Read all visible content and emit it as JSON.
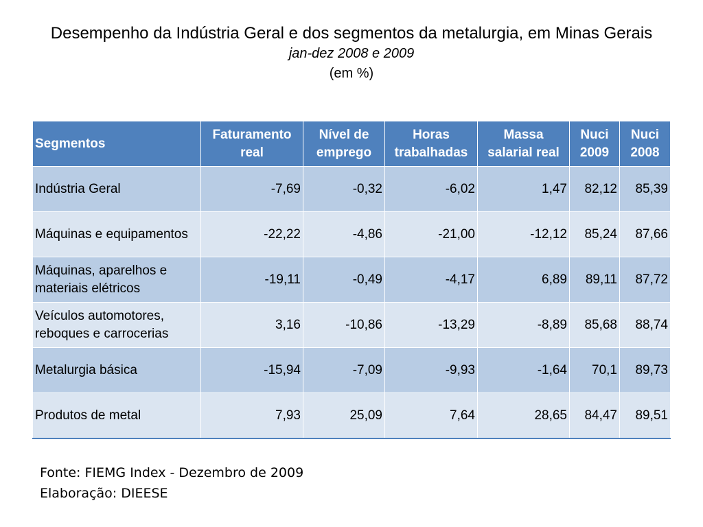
{
  "title": "Desempenho da Indústria Geral e dos segmentos da metalurgia, em Minas Gerais",
  "period": "jan-dez 2008 e 2009",
  "unit": "(em %)",
  "table": {
    "headers": [
      "Segmentos",
      "Faturamento real",
      "Nível de emprego",
      "Horas trabalhadas",
      "Massa salarial real",
      "Nuci 2009",
      "Nuci 2008"
    ],
    "rows": [
      {
        "segment": "Indústria Geral",
        "values": [
          "-7,69",
          "-0,32",
          "-6,02",
          "1,47",
          "82,12",
          "85,39"
        ]
      },
      {
        "segment": "Máquinas e equipamentos",
        "values": [
          "-22,22",
          "-4,86",
          "-21,00",
          "-12,12",
          "85,24",
          "87,66"
        ]
      },
      {
        "segment": "Máquinas, aparelhos e materiais elétricos",
        "values": [
          "-19,11",
          "-0,49",
          "-4,17",
          "6,89",
          "89,11",
          "87,72"
        ]
      },
      {
        "segment": "Veículos automotores, reboques e carrocerias",
        "values": [
          "3,16",
          "-10,86",
          "-13,29",
          "-8,89",
          "85,68",
          "88,74"
        ]
      },
      {
        "segment": "Metalurgia básica",
        "values": [
          "-15,94",
          "-7,09",
          "-9,93",
          "-1,64",
          "70,1",
          "89,73"
        ]
      },
      {
        "segment": "Produtos de metal",
        "values": [
          "7,93",
          "25,09",
          "7,64",
          "28,65",
          "84,47",
          "89,51"
        ]
      }
    ]
  },
  "source_line": "Fonte: FIEMG Index - Dezembro de 2009",
  "prepared_by_line": "Elaboração: DIEESE",
  "colors": {
    "header_bg": "#4f81bd",
    "row_dark": "#b8cce4",
    "row_light": "#dbe5f1"
  }
}
